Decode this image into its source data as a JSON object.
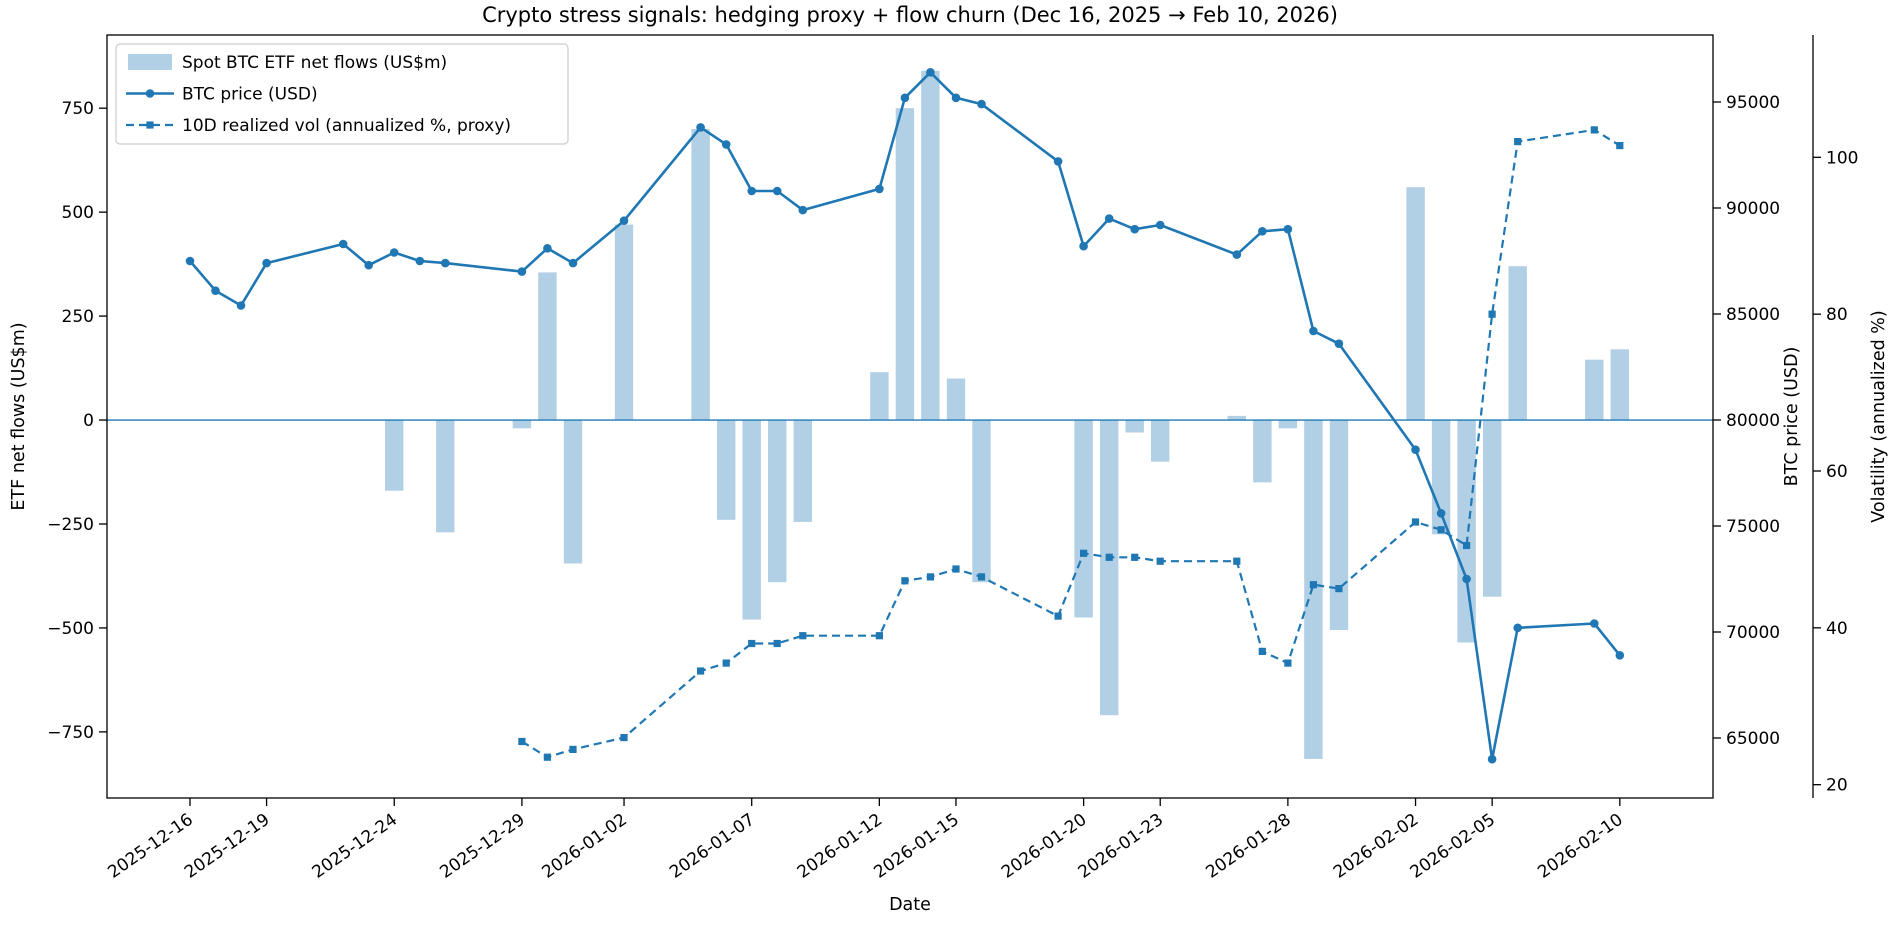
{
  "chart_data": {
    "type": "combo-bar-line",
    "title": "Crypto stress signals: hedging proxy + flow churn (Dec 16, 2025 → Feb 10, 2026)",
    "xlabel": "Date",
    "ylabel_left": "ETF net flows (US$m)",
    "ylabel_right": "BTC price (USD)",
    "ylabel_far_right": "Volatility (annualized %)",
    "legend_position": "upper left",
    "grid": false,
    "legend": [
      {
        "label": "Spot BTC ETF net flows (US$m)",
        "type": "bar"
      },
      {
        "label": "BTC price (USD)",
        "type": "line-circle"
      },
      {
        "label": "10D realized vol (annualized %, proxy)",
        "type": "dashed-line-square"
      }
    ],
    "dates": [
      "2025-12-16",
      "2025-12-17",
      "2025-12-18",
      "2025-12-19",
      "2025-12-22",
      "2025-12-23",
      "2025-12-24",
      "2025-12-25",
      "2025-12-26",
      "2025-12-29",
      "2025-12-30",
      "2025-12-31",
      "2026-01-02",
      "2026-01-05",
      "2026-01-06",
      "2026-01-07",
      "2026-01-08",
      "2026-01-09",
      "2026-01-12",
      "2026-01-13",
      "2026-01-14",
      "2026-01-15",
      "2026-01-16",
      "2026-01-19",
      "2026-01-20",
      "2026-01-21",
      "2026-01-22",
      "2026-01-23",
      "2026-01-26",
      "2026-01-27",
      "2026-01-28",
      "2026-01-29",
      "2026-01-30",
      "2026-02-02",
      "2026-02-03",
      "2026-02-04",
      "2026-02-05",
      "2026-02-06",
      "2026-02-09",
      "2026-02-10"
    ],
    "day_offsets": [
      0,
      1,
      2,
      3,
      6,
      7,
      8,
      9,
      10,
      13,
      14,
      15,
      17,
      20,
      21,
      22,
      23,
      24,
      27,
      28,
      29,
      30,
      31,
      34,
      35,
      36,
      37,
      38,
      41,
      42,
      43,
      44,
      45,
      48,
      49,
      50,
      51,
      52,
      55,
      56
    ],
    "series": {
      "etf_flows_usd_m": [
        0,
        0,
        0,
        0,
        0,
        0,
        -170,
        0,
        -270,
        -20,
        355,
        -345,
        470,
        700,
        -240,
        -480,
        -390,
        -245,
        115,
        750,
        840,
        100,
        -390,
        0,
        -475,
        -710,
        -30,
        -100,
        10,
        -150,
        -20,
        -815,
        -505,
        560,
        -275,
        -535,
        -425,
        370,
        145,
        170
      ],
      "btc_price_usd": [
        87500,
        86100,
        85400,
        87400,
        88300,
        87300,
        87900,
        87500,
        87400,
        87000,
        88100,
        87400,
        89400,
        93800,
        93000,
        90800,
        90800,
        89900,
        90900,
        95200,
        96400,
        95200,
        94900,
        92200,
        88200,
        89500,
        89000,
        89200,
        87800,
        88900,
        89000,
        84200,
        83600,
        78600,
        75600,
        72500,
        64000,
        70200,
        70400,
        68900
      ],
      "realized_vol_10d_pct": [
        null,
        null,
        null,
        null,
        null,
        null,
        null,
        null,
        null,
        25.5,
        23.5,
        24.5,
        26,
        34.5,
        35.5,
        38,
        38,
        39,
        39,
        46,
        46.5,
        47.5,
        46.5,
        41.5,
        49.5,
        49,
        49,
        48.5,
        48.5,
        37,
        35.5,
        45.5,
        45,
        53.5,
        52.5,
        50.5,
        80,
        102,
        103.5,
        101.5
      ]
    },
    "x_tick_labels": [
      "2025-12-16",
      "2025-12-19",
      "2025-12-24",
      "2025-12-29",
      "2026-01-02",
      "2026-01-07",
      "2026-01-12",
      "2026-01-15",
      "2026-01-20",
      "2026-01-23",
      "2026-01-28",
      "2026-02-02",
      "2026-02-05",
      "2026-02-10"
    ],
    "x_tick_day_offsets": [
      0,
      3,
      8,
      13,
      17,
      22,
      27,
      30,
      35,
      38,
      43,
      48,
      51,
      56
    ],
    "flows_ticks": {
      "values": [
        -750,
        -500,
        -250,
        0,
        250,
        500,
        750
      ],
      "labels": [
        "−750",
        "−500",
        "−250",
        "0",
        "250",
        "500",
        "750"
      ]
    },
    "price_ticks": {
      "values": [
        65000,
        70000,
        75000,
        80000,
        85000,
        90000,
        95000
      ],
      "labels": [
        "65000",
        "70000",
        "75000",
        "80000",
        "85000",
        "90000",
        "95000"
      ]
    },
    "vol_ticks": {
      "values": [
        20,
        40,
        60,
        80,
        100
      ],
      "labels": [
        "20",
        "40",
        "60",
        "80",
        "100"
      ]
    },
    "flows_ylim": [
      -909,
      926
    ],
    "price_ylim": [
      62170,
      98160
    ],
    "vol_ylim": [
      18.3,
      115.6
    ],
    "x_day_lim": [
      -3.25,
      59.65
    ],
    "bar_width_days": 0.72,
    "zero_line_flows": 0,
    "colors": {
      "accent_line": "#1f77b4",
      "bar_fill": "#b1cfe5",
      "zero_line": "#2079b4",
      "spine": "#000000",
      "legend_border": "#cccccc",
      "background": "#ffffff"
    }
  }
}
